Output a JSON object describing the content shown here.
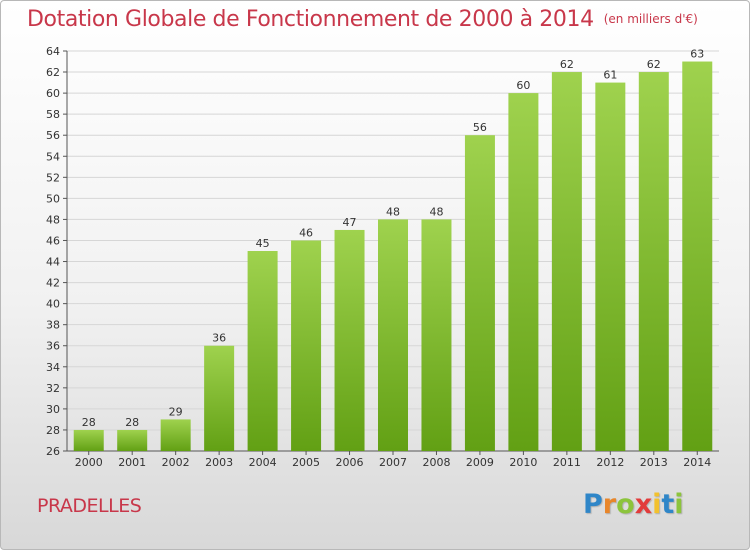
{
  "title": "Dotation Globale de Fonctionnement de 2000 à 2014",
  "subtitle": "(en milliers d'€)",
  "location": "PRADELLES",
  "brand": {
    "letters": [
      "P",
      "r",
      "o",
      "x",
      "i",
      "t",
      "i"
    ],
    "colors": [
      "#2f86c8",
      "#e8862a",
      "#8cc43c",
      "#e23b3b",
      "#f2c12e",
      "#2f86c8",
      "#8cc43c"
    ]
  },
  "colors": {
    "bar_top": "#9fd24e",
    "bar_bottom": "#62a014",
    "text_accent": "#c8374a",
    "grid": "#d6d6d6"
  },
  "chart_data": {
    "type": "bar",
    "categories": [
      "2000",
      "2001",
      "2002",
      "2003",
      "2004",
      "2005",
      "2006",
      "2007",
      "2008",
      "2009",
      "2010",
      "2011",
      "2012",
      "2013",
      "2014"
    ],
    "values": [
      28,
      28,
      29,
      36,
      45,
      46,
      47,
      48,
      48,
      56,
      60,
      62,
      61,
      62,
      63
    ],
    "title": "Dotation Globale de Fonctionnement de 2000 à 2014",
    "subtitle": "(en milliers d'€)",
    "xlabel": "",
    "ylabel": "",
    "ylim": [
      26,
      64
    ],
    "yticks": [
      26,
      28,
      30,
      32,
      34,
      36,
      38,
      40,
      42,
      44,
      46,
      48,
      50,
      52,
      54,
      56,
      58,
      60,
      62,
      64
    ],
    "grid": true,
    "legend": "none"
  }
}
